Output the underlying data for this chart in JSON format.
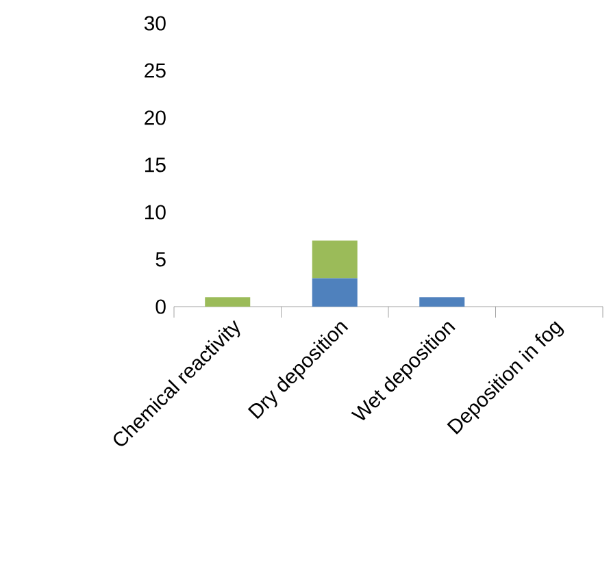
{
  "chart_data": {
    "type": "bar",
    "stacked": true,
    "categories": [
      "Chemical reactivity",
      "Dry deposition",
      "Wet deposition",
      "Deposition in fog"
    ],
    "series": [
      {
        "color": "#4f81bd",
        "values": [
          0,
          3,
          1,
          0
        ]
      },
      {
        "color": "#9bbb59",
        "values": [
          1,
          4,
          0,
          0
        ]
      }
    ],
    "ylim": [
      0,
      30
    ],
    "yticks": [
      0,
      5,
      10,
      15,
      20,
      25,
      30
    ]
  }
}
